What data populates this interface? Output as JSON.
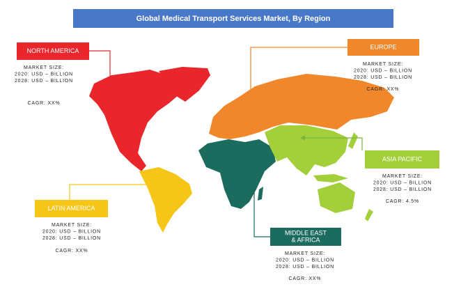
{
  "title": "Global Medical Transport Services Market, By Region",
  "regions": [
    {
      "label": [
        "NORTH AMERICA"
      ],
      "market_size": "MARKET SIZE:",
      "lines": [
        "2020: USD – BILLION",
        "2028: USD – BILLION"
      ],
      "cagr": "CAGR: XX%"
    },
    {
      "label": [
        "EUROPE"
      ],
      "market_size": "MARKET SIZE:",
      "lines": [
        "2020: USD – BILLION",
        "2028: USD – BILLION"
      ],
      "cagr": "CAGR: XX%"
    },
    {
      "label": [
        "ASIA PACIFIC"
      ],
      "market_size": "MARKET SIZE:",
      "lines": [
        "2020: USD – BILLION",
        "2028: USD – BILLION"
      ],
      "cagr": "CAGR: 4.5%"
    },
    {
      "label": [
        "LATIN AMERICA"
      ],
      "market_size": "MARKET SIZE:",
      "lines": [
        "2020: USD – BILLION",
        "2028: USD – BILLION"
      ],
      "cagr": "CAGR: XX%"
    },
    {
      "label": [
        "MIDDLE EAST",
        "& AFRICA"
      ],
      "market_size": "MARKET SIZE:",
      "lines": [
        "2020: USD – BILLION",
        "2028: USD – BILLION"
      ],
      "cagr": "CAGR: XX%"
    }
  ]
}
